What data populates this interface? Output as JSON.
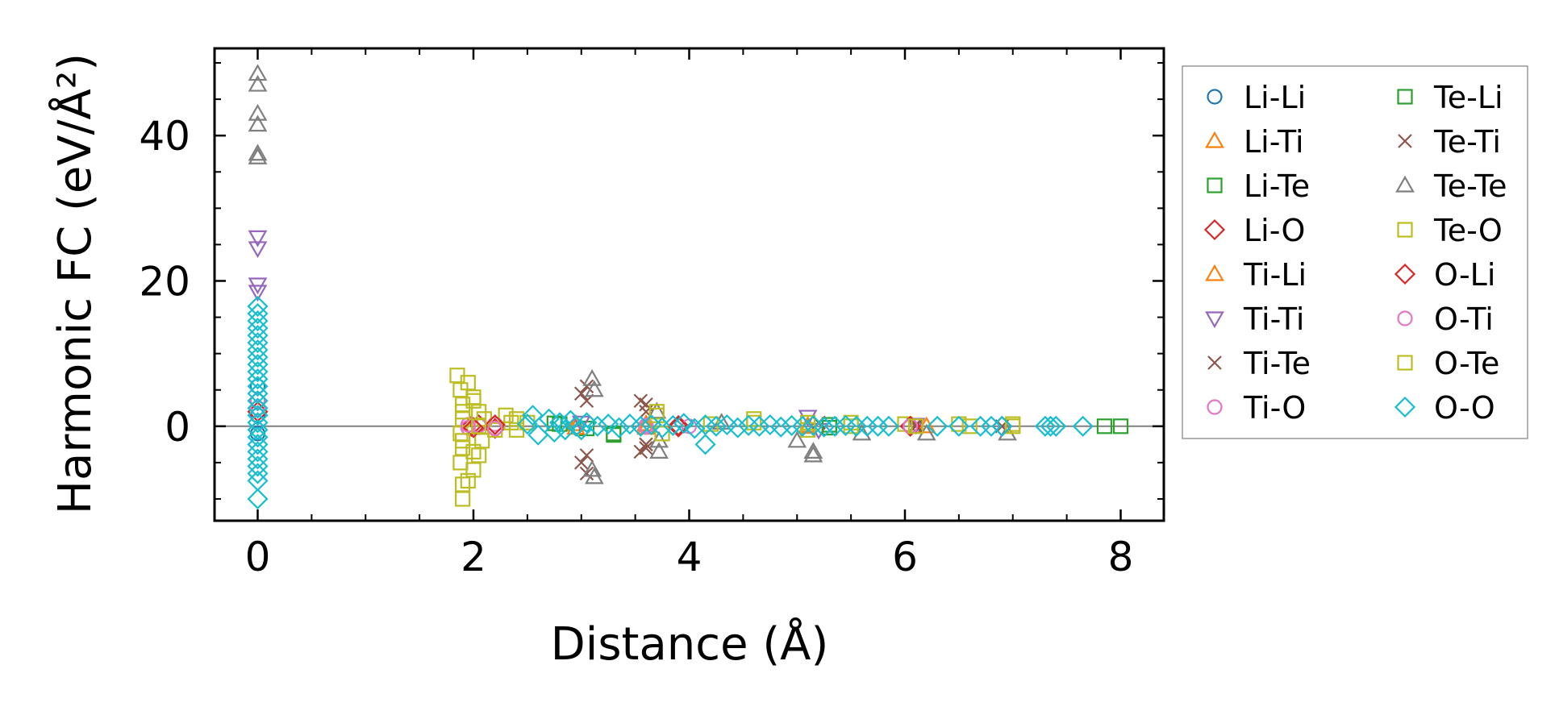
{
  "chart_data": {
    "type": "scatter",
    "xlabel": "Distance (Å)",
    "ylabel": "Harmonic FC (eV/Å²)",
    "xlim": [
      -0.4,
      8.4
    ],
    "ylim": [
      -13,
      52
    ],
    "x_ticks": [
      0,
      2,
      4,
      6,
      8
    ],
    "x_tick_labels": [
      "0",
      "2",
      "4",
      "6",
      "8"
    ],
    "y_ticks": [
      0,
      20,
      40
    ],
    "y_tick_labels": [
      "0",
      "20",
      "40"
    ],
    "zero_line": true,
    "grid": false,
    "legend": {
      "placement": "outside-right",
      "columns": 2
    },
    "series": [
      {
        "name": "Li-Li",
        "marker": "circle",
        "color": "#1f77b4",
        "points": [
          [
            0,
            5.5
          ],
          [
            0,
            1.5
          ],
          [
            0,
            -1.0
          ]
        ]
      },
      {
        "name": "Li-Ti",
        "marker": "triangle-up",
        "color": "#ff7f0e",
        "points": [
          [
            2.95,
            0.3
          ],
          [
            3.6,
            -0.2
          ],
          [
            5.1,
            0.1
          ],
          [
            6.2,
            0.0
          ]
        ]
      },
      {
        "name": "Li-Te",
        "marker": "square",
        "color": "#2ca02c",
        "points": [
          [
            2.75,
            0.4
          ],
          [
            3.05,
            -0.3
          ],
          [
            3.3,
            -1.0
          ],
          [
            5.3,
            0.2
          ]
        ]
      },
      {
        "name": "Li-O",
        "marker": "diamond",
        "color": "#d62728",
        "points": [
          [
            0,
            3.5
          ],
          [
            1.98,
            0.0
          ],
          [
            2.05,
            0.2
          ],
          [
            2.2,
            -0.3
          ],
          [
            3.9,
            0.1
          ],
          [
            6.05,
            0.0
          ],
          [
            6.9,
            0.0
          ]
        ]
      },
      {
        "name": "Ti-Li",
        "marker": "triangle-up",
        "color": "#ff7f0e",
        "points": [
          [
            2.95,
            -0.2
          ],
          [
            3.6,
            0.3
          ],
          [
            5.1,
            -0.1
          ]
        ]
      },
      {
        "name": "Ti-Ti",
        "marker": "triangle-down",
        "color": "#9467bd",
        "points": [
          [
            0,
            26.0
          ],
          [
            0,
            24.5
          ],
          [
            0,
            19.5
          ],
          [
            0,
            18.5
          ],
          [
            3.0,
            0.5
          ],
          [
            5.1,
            1.3
          ],
          [
            5.2,
            -0.5
          ],
          [
            6.1,
            0.2
          ]
        ]
      },
      {
        "name": "Ti-Te",
        "marker": "x",
        "color": "#8c564b",
        "points": [
          [
            3.05,
            5.5
          ],
          [
            3.05,
            3.5
          ],
          [
            3.0,
            -5.0
          ],
          [
            3.05,
            -6.5
          ],
          [
            3.55,
            3.5
          ],
          [
            3.6,
            2.0
          ],
          [
            3.55,
            -3.5
          ],
          [
            3.6,
            -2.5
          ],
          [
            5.2,
            0.5
          ],
          [
            6.1,
            0.0
          ],
          [
            6.9,
            0.0
          ]
        ]
      },
      {
        "name": "Ti-O",
        "marker": "circle",
        "color": "#e377c2",
        "points": [
          [
            0,
            3.5
          ],
          [
            1.95,
            -0.2
          ],
          [
            2.05,
            0.1
          ],
          [
            2.2,
            0.3
          ],
          [
            3.6,
            -0.1
          ],
          [
            4.0,
            0.0
          ],
          [
            6.05,
            0.0
          ]
        ]
      },
      {
        "name": "Te-Li",
        "marker": "square",
        "color": "#2ca02c",
        "points": [
          [
            2.8,
            0.3
          ],
          [
            3.3,
            -1.2
          ],
          [
            5.3,
            -0.2
          ],
          [
            7.85,
            0.0
          ],
          [
            8.0,
            0.0
          ]
        ]
      },
      {
        "name": "Te-Ti",
        "marker": "x",
        "color": "#8c564b",
        "points": [
          [
            3.0,
            4.5
          ],
          [
            3.05,
            -4.0
          ],
          [
            3.6,
            3.0
          ],
          [
            3.6,
            -3.0
          ],
          [
            6.1,
            0.2
          ]
        ]
      },
      {
        "name": "Te-Te",
        "marker": "triangle-up",
        "color": "#7f7f7f",
        "points": [
          [
            0,
            48.5
          ],
          [
            0,
            47.0
          ],
          [
            0,
            43.0
          ],
          [
            0,
            41.5
          ],
          [
            0,
            37.5
          ],
          [
            0,
            37.0
          ],
          [
            3.1,
            6.5
          ],
          [
            3.12,
            5.0
          ],
          [
            3.1,
            -6.0
          ],
          [
            3.12,
            -7.0
          ],
          [
            3.7,
            2.0
          ],
          [
            3.72,
            -2.0
          ],
          [
            3.72,
            -3.5
          ],
          [
            4.3,
            0.5
          ],
          [
            5.0,
            -2.0
          ],
          [
            5.15,
            -3.5
          ],
          [
            5.15,
            -4.0
          ],
          [
            5.6,
            -1.0
          ],
          [
            6.2,
            -1.0
          ],
          [
            6.95,
            -1.0
          ]
        ]
      },
      {
        "name": "Te-O",
        "marker": "square",
        "color": "#bcbd22",
        "points": [
          [
            1.85,
            7.0
          ],
          [
            1.88,
            5.0
          ],
          [
            1.9,
            3.0
          ],
          [
            1.9,
            1.0
          ],
          [
            1.88,
            -1.0
          ],
          [
            1.9,
            -3.0
          ],
          [
            1.88,
            -5.0
          ],
          [
            1.9,
            -8.0
          ],
          [
            1.9,
            -10.0
          ],
          [
            1.95,
            6.0
          ],
          [
            2.0,
            4.0
          ],
          [
            2.05,
            2.0
          ],
          [
            2.08,
            -2.0
          ],
          [
            2.05,
            -4.0
          ],
          [
            2.0,
            -6.0
          ],
          [
            1.95,
            -7.5
          ],
          [
            2.1,
            1.0
          ],
          [
            2.2,
            -0.5
          ],
          [
            2.3,
            1.5
          ],
          [
            2.35,
            0.5
          ],
          [
            2.4,
            -0.5
          ],
          [
            2.5,
            0.5
          ],
          [
            3.7,
            2.0
          ],
          [
            3.75,
            -1.0
          ],
          [
            4.2,
            0.3
          ],
          [
            4.6,
            1.0
          ],
          [
            5.1,
            0.5
          ],
          [
            5.5,
            0.5
          ],
          [
            6.0,
            0.3
          ],
          [
            6.5,
            0.3
          ],
          [
            7.0,
            0.3
          ]
        ]
      },
      {
        "name": "O-Li",
        "marker": "diamond",
        "color": "#d62728",
        "points": [
          [
            0,
            2.0
          ],
          [
            2.0,
            -0.2
          ],
          [
            2.2,
            0.2
          ],
          [
            3.9,
            -0.1
          ],
          [
            6.05,
            0.0
          ]
        ]
      },
      {
        "name": "O-Ti",
        "marker": "circle",
        "color": "#e377c2",
        "points": [
          [
            0,
            2.5
          ],
          [
            1.95,
            0.2
          ],
          [
            2.2,
            -0.3
          ],
          [
            3.6,
            0.1
          ],
          [
            6.05,
            0.0
          ]
        ]
      },
      {
        "name": "O-Te",
        "marker": "square",
        "color": "#bcbd22",
        "points": [
          [
            1.9,
            2.0
          ],
          [
            1.9,
            -2.0
          ],
          [
            2.0,
            3.5
          ],
          [
            2.0,
            -3.5
          ],
          [
            2.05,
            0.0
          ],
          [
            2.4,
            1.0
          ],
          [
            3.7,
            1.5
          ],
          [
            4.6,
            0.5
          ],
          [
            5.1,
            -0.5
          ],
          [
            5.5,
            0.0
          ],
          [
            6.1,
            0.0
          ],
          [
            6.6,
            0.0
          ],
          [
            7.0,
            0.0
          ]
        ]
      },
      {
        "name": "O-O",
        "marker": "diamond",
        "color": "#17becf",
        "points": [
          [
            0,
            16.5
          ],
          [
            0,
            15.5
          ],
          [
            0,
            14.5
          ],
          [
            0,
            13.5
          ],
          [
            0,
            12.5
          ],
          [
            0,
            11.5
          ],
          [
            0,
            10.5
          ],
          [
            0,
            9.5
          ],
          [
            0,
            8.5
          ],
          [
            0,
            7.5
          ],
          [
            0,
            6.5
          ],
          [
            0,
            5.5
          ],
          [
            0,
            4.5
          ],
          [
            0,
            3.5
          ],
          [
            0,
            2.5
          ],
          [
            0,
            1.5
          ],
          [
            0,
            0.5
          ],
          [
            0,
            -0.5
          ],
          [
            0,
            -1.5
          ],
          [
            0,
            -2.5
          ],
          [
            0,
            -3.5
          ],
          [
            0,
            -4.5
          ],
          [
            0,
            -5.5
          ],
          [
            0,
            -6.5
          ],
          [
            0,
            -7.5
          ],
          [
            0,
            -10.0
          ],
          [
            2.5,
            0.3
          ],
          [
            2.55,
            1.5
          ],
          [
            2.6,
            -1.2
          ],
          [
            2.7,
            1.0
          ],
          [
            2.75,
            -0.8
          ],
          [
            2.8,
            0.5
          ],
          [
            2.85,
            -0.5
          ],
          [
            2.9,
            0.8
          ],
          [
            2.95,
            0.0
          ],
          [
            3.0,
            -0.5
          ],
          [
            3.05,
            0.5
          ],
          [
            3.15,
            0.0
          ],
          [
            3.25,
            0.3
          ],
          [
            3.35,
            -0.2
          ],
          [
            3.45,
            0.3
          ],
          [
            3.55,
            0.0
          ],
          [
            3.65,
            0.2
          ],
          [
            3.75,
            -0.2
          ],
          [
            3.85,
            0.1
          ],
          [
            3.95,
            0.4
          ],
          [
            4.05,
            -0.3
          ],
          [
            4.15,
            0.2
          ],
          [
            4.15,
            -2.5
          ],
          [
            4.25,
            0.0
          ],
          [
            4.35,
            0.2
          ],
          [
            4.45,
            -0.2
          ],
          [
            4.55,
            0.1
          ],
          [
            4.65,
            0.0
          ],
          [
            4.75,
            0.2
          ],
          [
            4.85,
            -0.1
          ],
          [
            4.95,
            0.1
          ],
          [
            5.05,
            0.0
          ],
          [
            5.15,
            0.1
          ],
          [
            5.25,
            -0.1
          ],
          [
            5.35,
            0.0
          ],
          [
            5.45,
            0.1
          ],
          [
            5.55,
            0.0
          ],
          [
            5.65,
            0.0
          ],
          [
            5.75,
            0.0
          ],
          [
            5.85,
            0.0
          ],
          [
            6.3,
            0.0
          ],
          [
            6.5,
            0.0
          ],
          [
            6.7,
            0.0
          ],
          [
            6.8,
            0.0
          ],
          [
            6.9,
            0.0
          ],
          [
            7.3,
            0.0
          ],
          [
            7.35,
            0.0
          ],
          [
            7.4,
            0.0
          ],
          [
            7.65,
            0.0
          ]
        ]
      }
    ]
  }
}
